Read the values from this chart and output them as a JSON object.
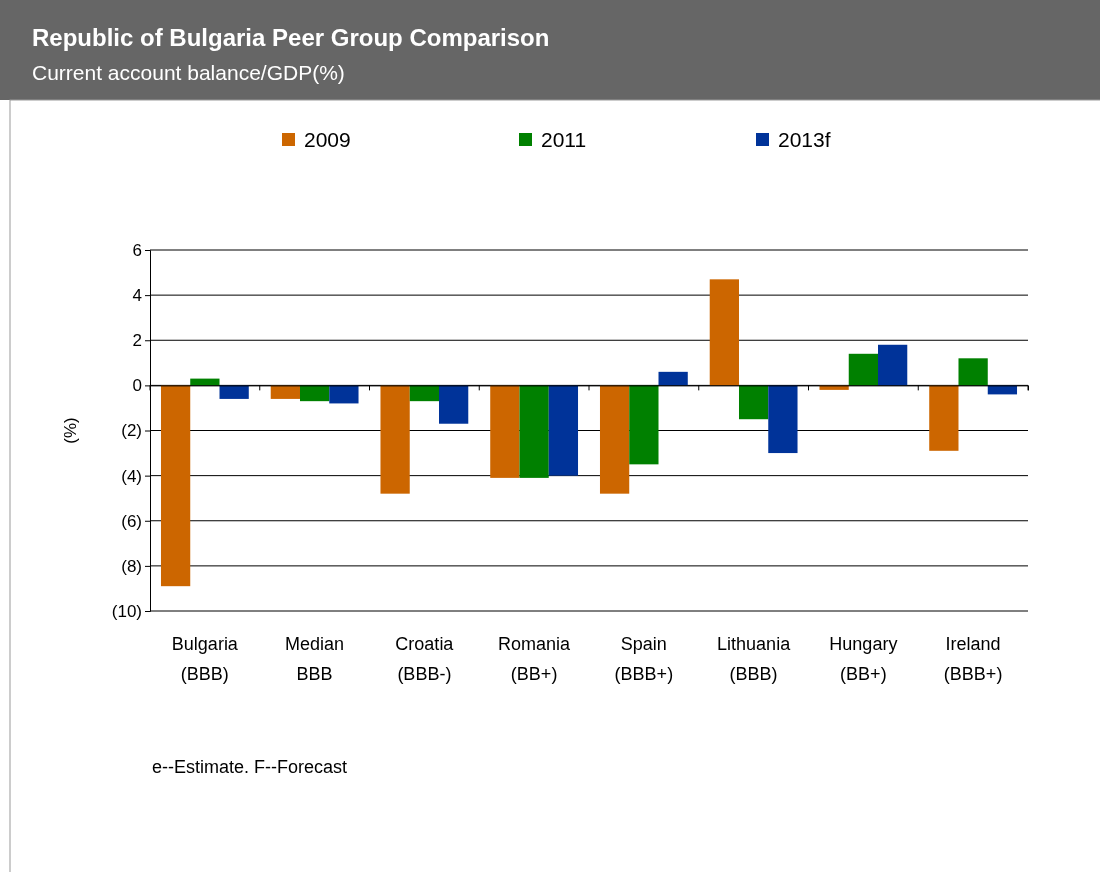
{
  "chart_data": {
    "type": "bar",
    "title": "Republic of Bulgaria Peer Group Comparison",
    "subtitle": "Current account balance/GDP(%)",
    "ylabel": "(%)",
    "categories": [
      "Bulgaria (BBB)",
      "Median BBB",
      "Croatia (BBB-)",
      "Romania (BB+)",
      "Spain (BBB+)",
      "Lithuania (BBB)",
      "Hungary (BB+)",
      "Ireland (BBB+)"
    ],
    "series": [
      {
        "name": "2009",
        "color": "#cc6600",
        "values": [
          -8.9,
          -0.6,
          -4.8,
          -4.1,
          -4.8,
          4.7,
          -0.2,
          -2.9
        ]
      },
      {
        "name": "2011",
        "color": "#008000",
        "values": [
          0.3,
          -0.7,
          -0.7,
          -4.1,
          -3.5,
          -1.5,
          1.4,
          1.2
        ]
      },
      {
        "name": "2013f",
        "color": "#003399",
        "values": [
          -0.6,
          -0.8,
          -1.7,
          -4.0,
          0.6,
          -3.0,
          1.8,
          -0.4
        ]
      }
    ],
    "ylim": [
      -10,
      6
    ],
    "yticks": [
      {
        "value": -10,
        "label": "(10)"
      },
      {
        "value": -8,
        "label": "(8)"
      },
      {
        "value": -6,
        "label": "(6)"
      },
      {
        "value": -4,
        "label": "(4)"
      },
      {
        "value": -2,
        "label": "(2)"
      },
      0,
      2,
      4,
      6
    ],
    "grid": "y",
    "legend": "top",
    "annotations": [
      "e--Estimate. F--Forecast"
    ]
  }
}
